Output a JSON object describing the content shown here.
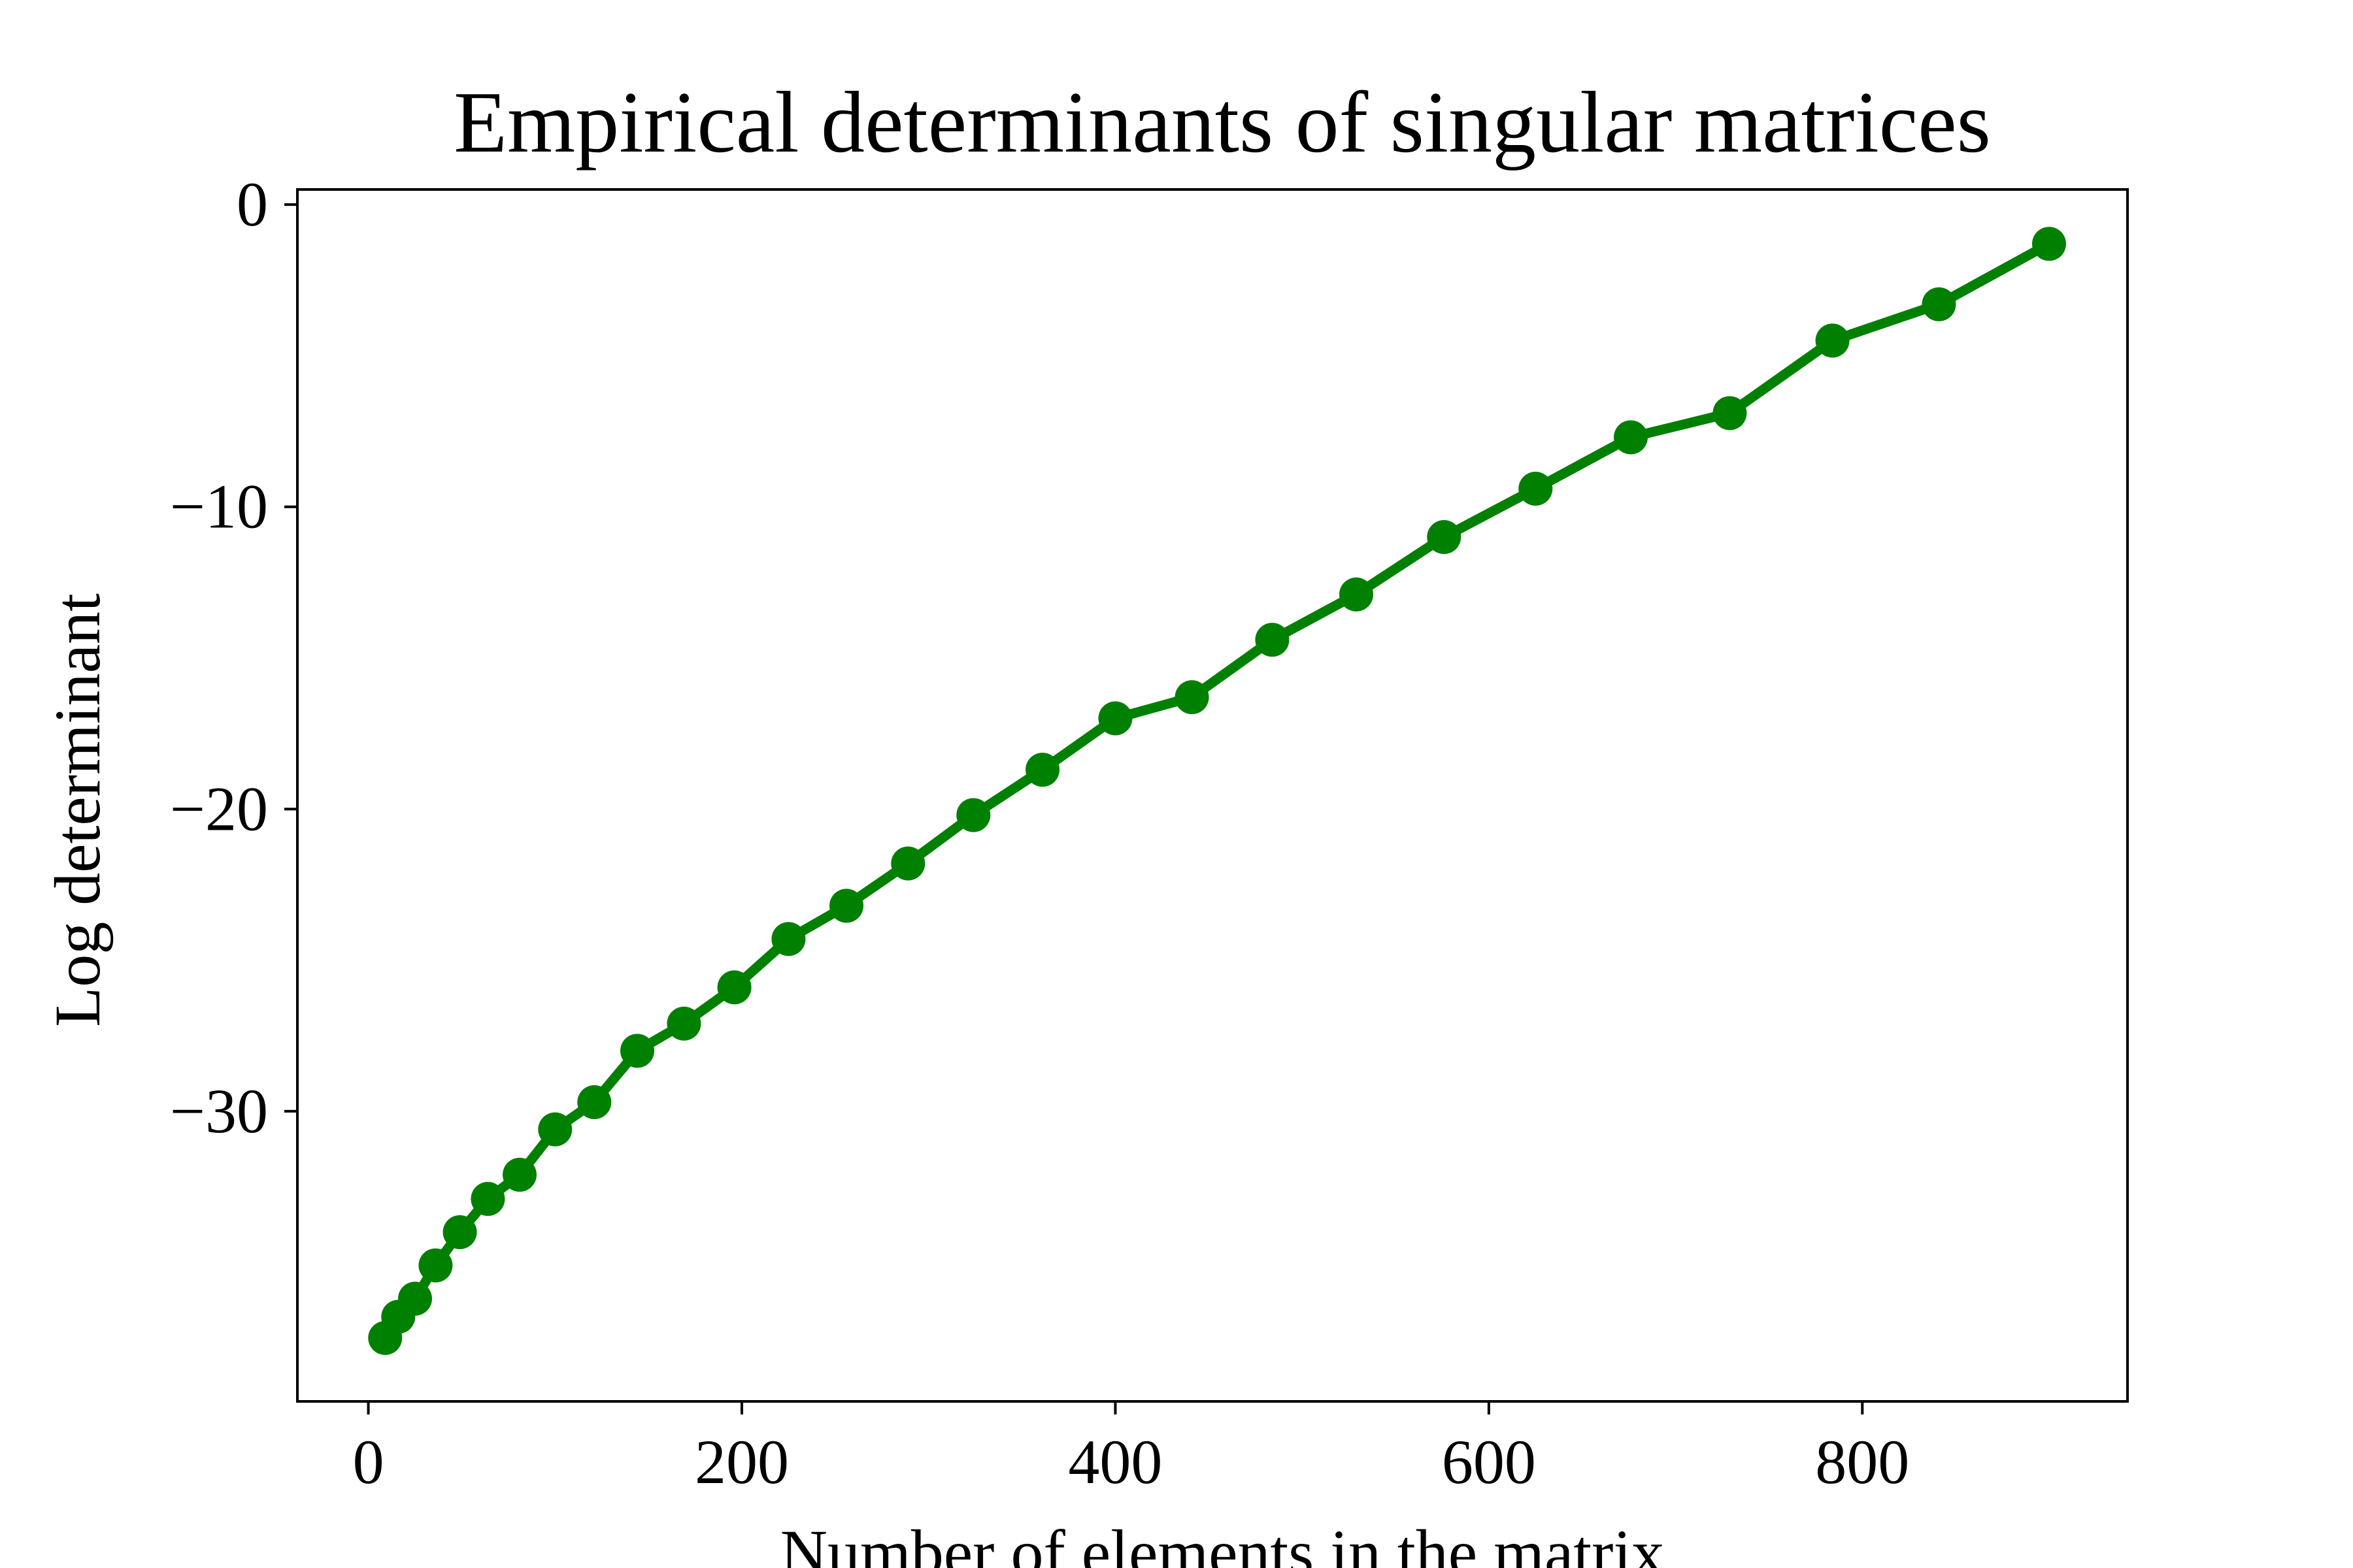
{
  "colors": {
    "series": "#008000",
    "axis": "#000000",
    "background": "#ffffff"
  },
  "chart_data": {
    "type": "line",
    "title": "Empirical determinants of singular matrices",
    "xlabel": "Number of elements in the matrix",
    "ylabel": "Log determinant",
    "xlim": [
      -38,
      942
    ],
    "ylim": [
      -39.6,
      0.5
    ],
    "xticks": [
      0,
      200,
      400,
      600,
      800
    ],
    "yticks": [
      0,
      -10,
      -20,
      -30
    ],
    "xtick_labels": [
      "0",
      "200",
      "400",
      "600",
      "800"
    ],
    "ytick_labels": [
      "0",
      "−10",
      "−20",
      "−30"
    ],
    "grid": false,
    "series": [
      {
        "color": "#008000",
        "marker": "circle",
        "x": [
          9,
          16,
          25,
          36,
          49,
          64,
          81,
          100,
          121,
          144,
          169,
          196,
          225,
          256,
          289,
          324,
          361,
          400,
          441,
          484,
          529,
          576,
          625,
          676,
          729,
          784,
          841,
          900
        ],
        "y": [
          -37.5,
          -36.8,
          -36.2,
          -35.1,
          -34.0,
          -32.9,
          -32.1,
          -30.6,
          -29.7,
          -28.0,
          -27.1,
          -25.9,
          -24.3,
          -23.2,
          -21.8,
          -20.2,
          -18.7,
          -17.0,
          -16.3,
          -14.4,
          -12.9,
          -11.0,
          -9.4,
          -7.7,
          -6.9,
          -4.5,
          -3.3,
          -1.3
        ]
      }
    ]
  }
}
